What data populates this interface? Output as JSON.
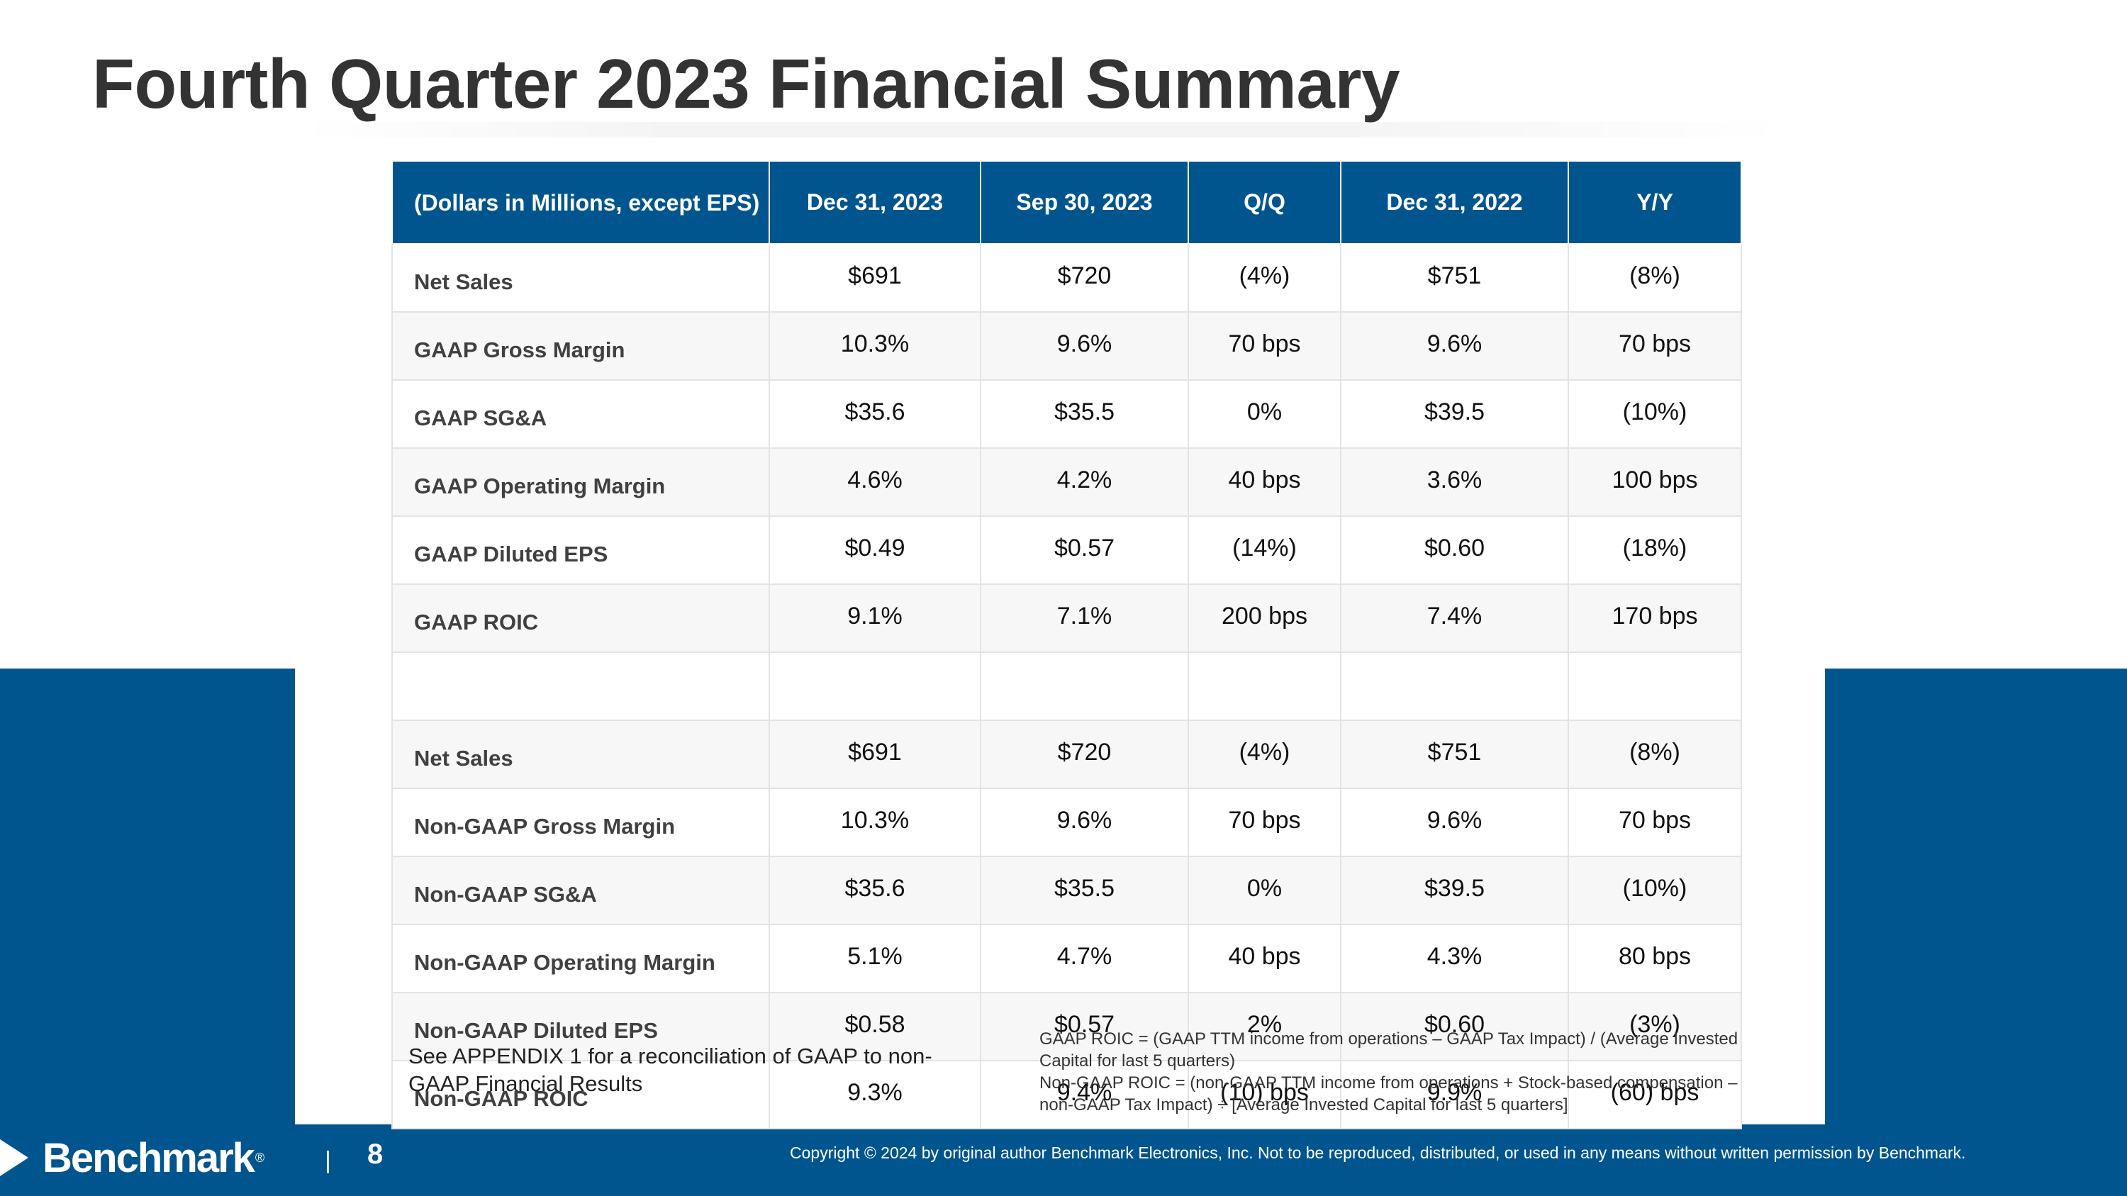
{
  "slide": {
    "title": "Fourth Quarter 2023 Financial Summary",
    "page_number": "8",
    "separator": "|",
    "logo_text": "Benchmark",
    "logo_mark": "®",
    "copyright": "Copyright © 2024 by original author Benchmark Electronics, Inc. Not to be reproduced, distributed, or used in any means without written permission by Benchmark."
  },
  "colors": {
    "brand_blue": "#00558f",
    "title_text": "#333333"
  },
  "table": {
    "headers": [
      "(Dollars in Millions, except EPS)",
      "Dec 31, 2023",
      "Sep 30, 2023",
      "Q/Q",
      "Dec 31, 2022",
      "Y/Y"
    ],
    "rows": [
      [
        "Net Sales",
        "$691",
        "$720",
        "(4%)",
        "$751",
        "(8%)"
      ],
      [
        "GAAP Gross Margin",
        "10.3%",
        "9.6%",
        "70 bps",
        "9.6%",
        "70 bps"
      ],
      [
        "GAAP SG&A",
        "$35.6",
        "$35.5",
        "0%",
        "$39.5",
        "(10%)"
      ],
      [
        "GAAP Operating Margin",
        "4.6%",
        "4.2%",
        "40 bps",
        "3.6%",
        "100 bps"
      ],
      [
        "GAAP Diluted EPS",
        "$0.49",
        "$0.57",
        "(14%)",
        "$0.60",
        "(18%)"
      ],
      [
        "GAAP ROIC",
        "9.1%",
        "7.1%",
        "200 bps",
        "7.4%",
        "170 bps"
      ],
      [
        "",
        "",
        "",
        "",
        "",
        ""
      ],
      [
        "Net Sales",
        "$691",
        "$720",
        "(4%)",
        "$751",
        "(8%)"
      ],
      [
        "Non-GAAP Gross Margin",
        "10.3%",
        "9.6%",
        "70 bps",
        "9.6%",
        "70 bps"
      ],
      [
        "Non-GAAP SG&A",
        "$35.6",
        "$35.5",
        "0%",
        "$39.5",
        "(10%)"
      ],
      [
        "Non-GAAP Operating Margin",
        "5.1%",
        "4.7%",
        "40 bps",
        "4.3%",
        "80 bps"
      ],
      [
        "Non-GAAP Diluted EPS",
        "$0.58",
        "$0.57",
        "2%",
        "$0.60",
        "(3%)"
      ],
      [
        "Non-GAAP ROIC",
        "9.3%",
        "9.4%",
        "(10) bps",
        "9.9%",
        "(60) bps"
      ]
    ]
  },
  "notes": {
    "appendix": "See APPENDIX 1 for a reconciliation of GAAP to non-GAAP Financial Results",
    "roic_definitions": [
      "GAAP ROIC = (GAAP TTM income from operations – GAAP Tax Impact) / (Average Invested Capital for last 5 quarters)",
      "Non-GAAP ROIC = (non-GAAP TTM income from operations + Stock-based compensation – non-GAAP Tax Impact) ÷ [Average Invested Capital for last 5 quarters]"
    ]
  }
}
